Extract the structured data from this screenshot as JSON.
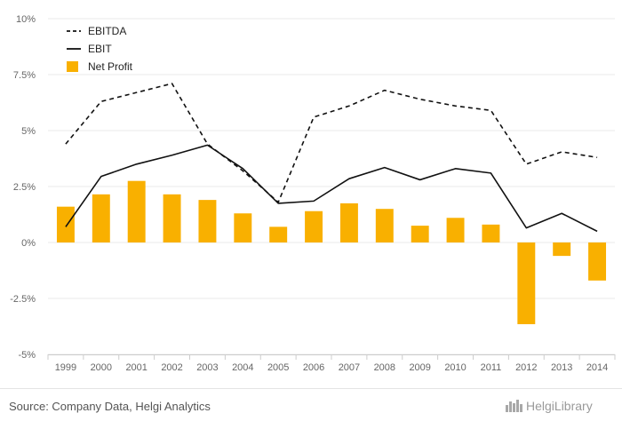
{
  "colors": {
    "bar": "#F9B000",
    "line": "#111111",
    "grid": "#E8E8E8",
    "axis": "#CCCCCC"
  },
  "chart_data": {
    "type": "bar",
    "categories": [
      "1999",
      "2000",
      "2001",
      "2002",
      "2003",
      "2004",
      "2005",
      "2006",
      "2007",
      "2008",
      "2009",
      "2010",
      "2011",
      "2012",
      "2013",
      "2014"
    ],
    "ylim": [
      -5,
      10
    ],
    "yticks": [
      -5,
      -2.5,
      0,
      2.5,
      5,
      7.5,
      10
    ],
    "ytick_labels": [
      "-5%",
      "-2.5%",
      "0%",
      "2.5%",
      "5%",
      "7.5%",
      "10%"
    ],
    "grid": true,
    "legend_position": "top-left",
    "series": [
      {
        "name": "EBITDA",
        "kind": "line",
        "style": "dashed",
        "values": [
          4.4,
          6.3,
          6.7,
          7.1,
          4.4,
          3.2,
          1.8,
          5.6,
          6.1,
          6.8,
          6.4,
          6.1,
          5.9,
          3.5,
          4.05,
          3.8
        ]
      },
      {
        "name": "EBIT",
        "kind": "line",
        "style": "solid",
        "values": [
          0.7,
          2.95,
          3.5,
          3.9,
          4.35,
          3.3,
          1.75,
          1.85,
          2.85,
          3.35,
          2.8,
          3.3,
          3.1,
          0.65,
          1.3,
          0.5
        ]
      },
      {
        "name": "Net Profit",
        "kind": "bar",
        "style": "filled",
        "values": [
          1.6,
          2.15,
          2.75,
          2.15,
          1.9,
          1.3,
          0.7,
          1.4,
          1.75,
          1.5,
          0.75,
          1.1,
          0.8,
          -3.65,
          -0.6,
          -1.7
        ]
      }
    ]
  },
  "footer": {
    "source": "Source: Company Data, Helgi Analytics",
    "logo_text": "HelgiLibrary"
  }
}
